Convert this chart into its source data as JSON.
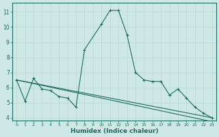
{
  "xlabel": "Humidex (Indice chaleur)",
  "ylabel": "",
  "bg_color": "#cde8e5",
  "line_color": "#1a6b5e",
  "grid_color": "#b8d8d5",
  "xlim": [
    -0.5,
    23.5
  ],
  "ylim": [
    3.8,
    11.6
  ],
  "yticks": [
    4,
    5,
    6,
    7,
    8,
    9,
    10,
    11
  ],
  "xticks": [
    0,
    1,
    2,
    3,
    4,
    5,
    6,
    7,
    8,
    9,
    10,
    11,
    12,
    13,
    14,
    15,
    16,
    17,
    18,
    19,
    20,
    21,
    22,
    23
  ],
  "series": [
    {
      "x": [
        0,
        1,
        2,
        3,
        4,
        5,
        6,
        7,
        8,
        10,
        11,
        12,
        13,
        14,
        15,
        16,
        17,
        18,
        19,
        20,
        21,
        22,
        23
      ],
      "y": [
        6.5,
        5.1,
        6.6,
        5.9,
        5.8,
        5.4,
        5.3,
        4.7,
        8.5,
        10.2,
        11.1,
        11.1,
        9.5,
        7.0,
        6.5,
        6.4,
        6.4,
        5.5,
        5.9,
        5.3,
        4.7,
        4.3,
        4.0
      ],
      "marker": "+"
    },
    {
      "x": [
        0,
        23
      ],
      "y": [
        6.5,
        4.0
      ],
      "marker": null
    },
    {
      "x": [
        0,
        1,
        2,
        3,
        4,
        5,
        6,
        7,
        8,
        9,
        10,
        11,
        12,
        13,
        14,
        15,
        16,
        17,
        18,
        19,
        20,
        21,
        22,
        23
      ],
      "y": [
        6.5,
        6.38,
        6.26,
        6.14,
        6.02,
        5.9,
        5.78,
        5.66,
        5.54,
        5.42,
        5.3,
        5.18,
        5.06,
        4.94,
        4.82,
        4.7,
        4.58,
        4.46,
        4.34,
        4.22,
        4.1,
        3.98,
        3.86,
        3.74
      ],
      "marker": null
    }
  ]
}
